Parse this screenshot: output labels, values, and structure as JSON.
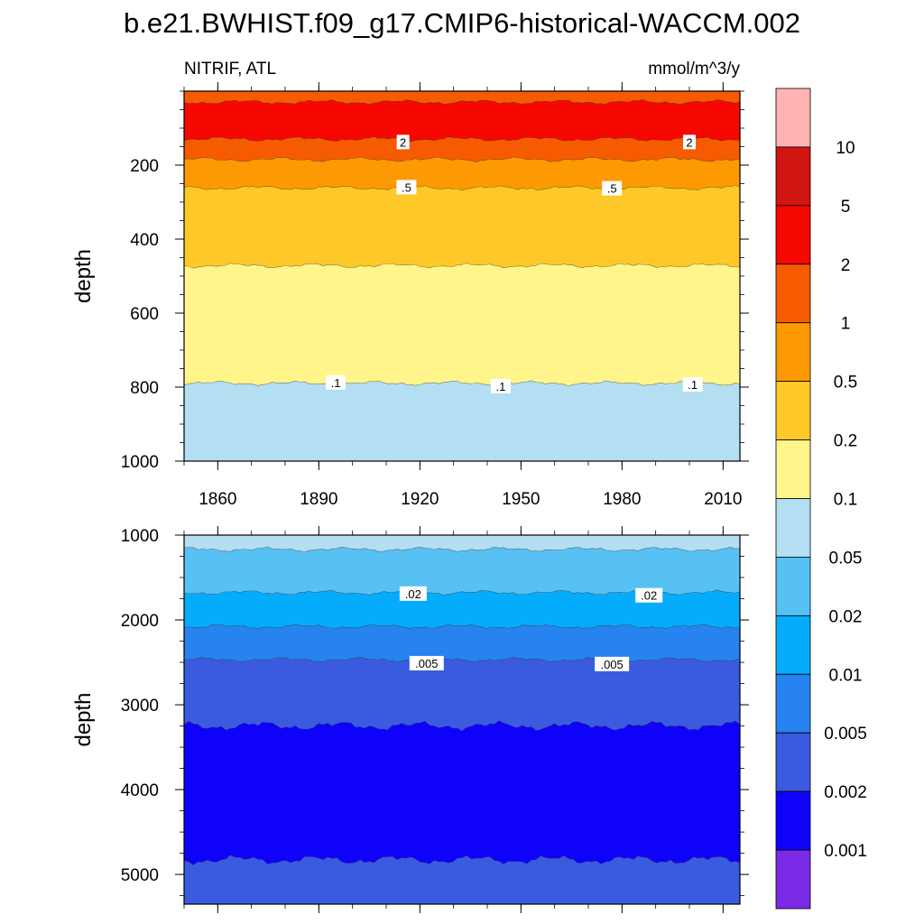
{
  "title": "b.e21.BWHIST.f09_g17.CMIP6-historical-WACCM.002",
  "subtitle_left": "NITRIF, ATL",
  "subtitle_right": "mmol/m^3/y",
  "chart_data": [
    {
      "type": "heatmap",
      "panel": "upper",
      "variable": "NITRIF",
      "region": "ATL",
      "units": "mmol/m^3/y",
      "ylabel": "depth",
      "xlim": [
        1850,
        2015
      ],
      "ylim": [
        1000,
        0
      ],
      "x_ticks": [
        1860,
        1890,
        1920,
        1950,
        1980,
        2010
      ],
      "y_ticks": [
        200,
        400,
        600,
        800,
        1000
      ],
      "bands": [
        {
          "from_depth": 0,
          "to_depth": 30,
          "color": "#f75b02",
          "range": "1-2"
        },
        {
          "from_depth": 30,
          "to_depth": 130,
          "color": "#f60700",
          "range": "2-5"
        },
        {
          "from_depth": 130,
          "to_depth": 185,
          "color": "#f75b02",
          "range": "1-2"
        },
        {
          "from_depth": 185,
          "to_depth": 262,
          "color": "#fd9902",
          "range": "0.5-1"
        },
        {
          "from_depth": 262,
          "to_depth": 472,
          "color": "#fec928",
          "range": "0.2-0.5"
        },
        {
          "from_depth": 472,
          "to_depth": 790,
          "color": "#fff58b",
          "range": "0.1-0.2"
        },
        {
          "from_depth": 790,
          "to_depth": 1000,
          "color": "#b4def2",
          "range": "0.05-0.1"
        }
      ],
      "contour_labels": [
        {
          "text": "2",
          "year": 1915,
          "depth": 140
        },
        {
          "text": "2",
          "year": 2000,
          "depth": 140
        },
        {
          "text": ".5",
          "year": 1916,
          "depth": 262
        },
        {
          "text": ".5",
          "year": 1977,
          "depth": 265
        },
        {
          "text": ".1",
          "year": 1895,
          "depth": 790
        },
        {
          "text": ".1",
          "year": 1944,
          "depth": 800
        },
        {
          "text": ".1",
          "year": 2001,
          "depth": 795
        }
      ]
    },
    {
      "type": "heatmap",
      "panel": "lower",
      "variable": "NITRIF",
      "region": "ATL",
      "units": "mmol/m^3/y",
      "ylabel": "depth",
      "xlim": [
        1850,
        2015
      ],
      "ylim": [
        5350,
        1000
      ],
      "x_ticks": [
        1860,
        1890,
        1920,
        1950,
        1980,
        2010
      ],
      "y_ticks": [
        1000,
        2000,
        3000,
        4000,
        5000
      ],
      "bands": [
        {
          "from_depth": 1000,
          "to_depth": 1170,
          "color": "#b4def2",
          "range": "0.05-0.1"
        },
        {
          "from_depth": 1170,
          "to_depth": 1680,
          "color": "#56c1f2",
          "range": "0.02-0.05"
        },
        {
          "from_depth": 1680,
          "to_depth": 2080,
          "color": "#06acfc",
          "range": "0.01-0.02"
        },
        {
          "from_depth": 2080,
          "to_depth": 2470,
          "color": "#2683f0",
          "range": "0.005-0.01"
        },
        {
          "from_depth": 2470,
          "to_depth": 3250,
          "color": "#3a5be0",
          "range": "0.002-0.005"
        },
        {
          "from_depth": 3250,
          "to_depth": 4830,
          "color": "#0f02fb",
          "range": "0.001-0.002"
        },
        {
          "from_depth": 4830,
          "to_depth": 5350,
          "color": "#3a5be0",
          "range": "0.002-0.005"
        }
      ],
      "contour_labels": [
        {
          "text": ".02",
          "year": 1918,
          "depth": 1700
        },
        {
          "text": ".02",
          "year": 1988,
          "depth": 1720
        },
        {
          "text": ".005",
          "year": 1922,
          "depth": 2520
        },
        {
          "text": ".005",
          "year": 1977,
          "depth": 2530
        }
      ]
    }
  ],
  "colorbar": {
    "labels": [
      "10",
      "5",
      "2",
      "1",
      "0.5",
      "0.2",
      "0.1",
      "0.05",
      "0.02",
      "0.01",
      "0.005",
      "0.002",
      "0.001"
    ],
    "colors": [
      "#ffb3b3",
      "#d11511",
      "#f60700",
      "#f75b02",
      "#fd9902",
      "#fec928",
      "#fff58b",
      "#b4def2",
      "#56c1f2",
      "#06acfc",
      "#2683f0",
      "#3a5be0",
      "#0f02fb",
      "#7b2ae6"
    ]
  }
}
